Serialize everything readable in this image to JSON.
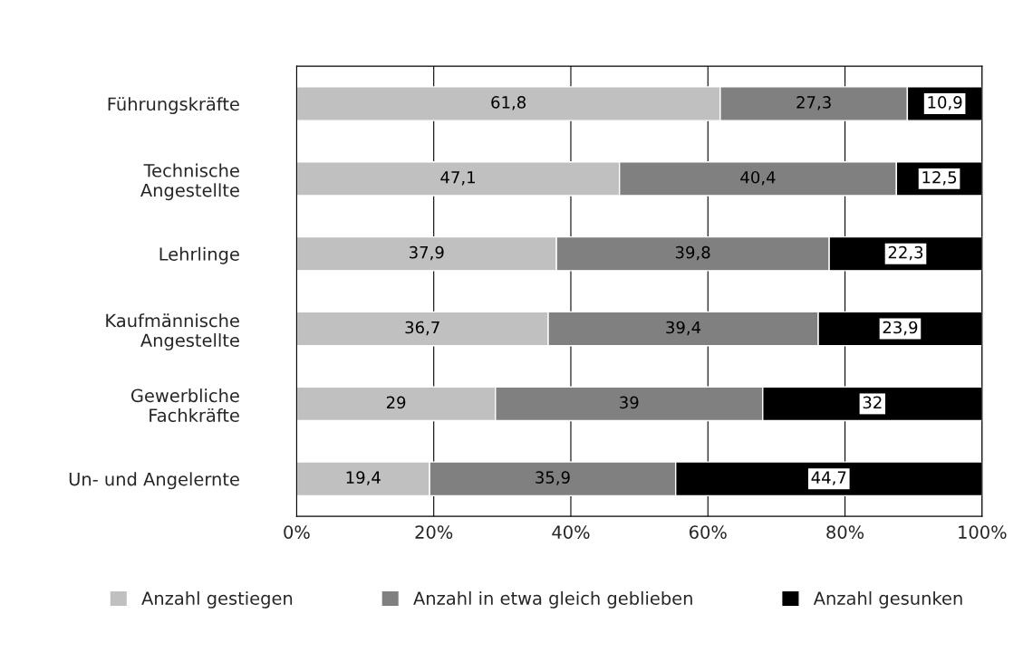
{
  "chart_data": {
    "type": "bar",
    "orientation": "horizontal",
    "stacked": true,
    "categories": [
      "Führungskräfte",
      "Technische\nAngestellte",
      "Lehrlinge",
      "Kaufmännische\nAngestellte",
      "Gewerbliche\nFachkräfte",
      "Un- und Angelernte"
    ],
    "series": [
      {
        "name": "Anzahl gestiegen",
        "color": "#c0c0c0",
        "values": [
          61.8,
          47.1,
          37.9,
          36.7,
          29,
          19.4
        ],
        "value_labels": [
          "61,8",
          "47,1",
          "37,9",
          "36,7",
          "29",
          "19,4"
        ]
      },
      {
        "name": "Anzahl in etwa gleich geblieben",
        "color": "#808080",
        "values": [
          27.3,
          40.4,
          39.8,
          39.4,
          39,
          35.9
        ],
        "value_labels": [
          "27,3",
          "40,4",
          "39,8",
          "39,4",
          "39",
          "35,9"
        ]
      },
      {
        "name": "Anzahl gesunken",
        "color": "#000000",
        "values": [
          10.9,
          12.5,
          22.3,
          23.9,
          32,
          44.7
        ],
        "value_labels": [
          "10,9",
          "12,5",
          "22,3",
          "23,9",
          "32",
          "44,7"
        ]
      }
    ],
    "xlim": [
      0,
      100
    ],
    "xticks": [
      {
        "value": 0,
        "label": "0%"
      },
      {
        "value": 20,
        "label": "20%"
      },
      {
        "value": 40,
        "label": "40%"
      },
      {
        "value": 60,
        "label": "60%"
      },
      {
        "value": 80,
        "label": "80%"
      },
      {
        "value": 100,
        "label": "100%"
      }
    ],
    "grid": "x",
    "legend": "bottom"
  }
}
